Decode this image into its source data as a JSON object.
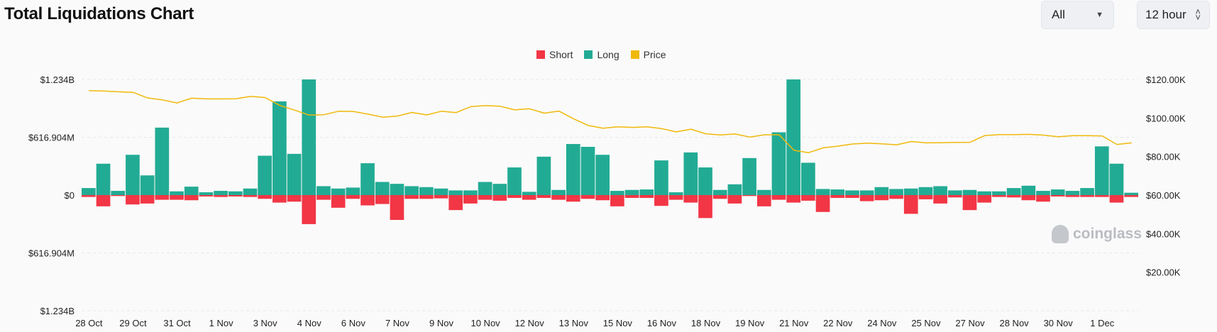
{
  "header": {
    "title": "Total Liquidations Chart",
    "range_value": "All",
    "interval_value": "12 hour"
  },
  "legend": [
    {
      "label": "Short",
      "color": "#f23645"
    },
    {
      "label": "Long",
      "color": "#22ab94"
    },
    {
      "label": "Price",
      "color": "#f0b90b"
    }
  ],
  "watermark": "coinglass",
  "chart_data": {
    "type": "bar",
    "left_axis": {
      "ticks": [
        {
          "value": 1234000000,
          "label": "$1.234B"
        },
        {
          "value": 616904000,
          "label": "$616.904M"
        },
        {
          "value": 0,
          "label": "$0"
        },
        {
          "value": -616904000,
          "label": "$616.904M"
        },
        {
          "value": -1234000000,
          "label": "$1.234B"
        }
      ],
      "ylim": [
        -1234000000,
        1234000000
      ]
    },
    "right_axis": {
      "ticks": [
        {
          "value": 120000,
          "label": "$120.00K"
        },
        {
          "value": 100000,
          "label": "$100.00K"
        },
        {
          "value": 80000,
          "label": "$80.00K"
        },
        {
          "value": 60000,
          "label": "$60.00K"
        },
        {
          "value": 40000,
          "label": "$40.00K"
        },
        {
          "value": 20000,
          "label": "$20.00K"
        }
      ],
      "ylim": [
        0,
        120000
      ]
    },
    "x_tick_labels": [
      {
        "label": "28 Oct",
        "index": 0
      },
      {
        "label": "29 Oct",
        "index": 3
      },
      {
        "label": "31 Oct",
        "index": 6
      },
      {
        "label": "1 Nov",
        "index": 9
      },
      {
        "label": "3 Nov",
        "index": 12
      },
      {
        "label": "4 Nov",
        "index": 15
      },
      {
        "label": "6 Nov",
        "index": 18
      },
      {
        "label": "7 Nov",
        "index": 21
      },
      {
        "label": "9 Nov",
        "index": 24
      },
      {
        "label": "10 Nov",
        "index": 27
      },
      {
        "label": "12 Nov",
        "index": 30
      },
      {
        "label": "13 Nov",
        "index": 33
      },
      {
        "label": "15 Nov",
        "index": 36
      },
      {
        "label": "16 Nov",
        "index": 39
      },
      {
        "label": "18 Nov",
        "index": 42
      },
      {
        "label": "19 Nov",
        "index": 45
      },
      {
        "label": "21 Nov",
        "index": 48
      },
      {
        "label": "22 Nov",
        "index": 51
      },
      {
        "label": "24 Nov",
        "index": 54
      },
      {
        "label": "25 Nov",
        "index": 57
      },
      {
        "label": "27 Nov",
        "index": 60
      },
      {
        "label": "28 Nov",
        "index": 63
      },
      {
        "label": "30 Nov",
        "index": 66
      },
      {
        "label": "1 Dec",
        "index": 69
      }
    ],
    "series": [
      {
        "name": "Long",
        "values": [
          75,
          335,
          45,
          430,
          210,
          720,
          40,
          90,
          30,
          45,
          40,
          70,
          420,
          1000,
          440,
          1234,
          95,
          70,
          80,
          340,
          140,
          120,
          95,
          85,
          70,
          50,
          50,
          140,
          120,
          295,
          35,
          410,
          55,
          545,
          515,
          430,
          45,
          55,
          60,
          370,
          30,
          455,
          295,
          55,
          115,
          395,
          55,
          670,
          1234,
          345,
          65,
          60,
          50,
          50,
          85,
          65,
          70,
          85,
          95,
          50,
          55,
          40,
          40,
          75,
          100,
          45,
          60,
          45,
          75,
          520,
          335,
          25
        ]
      },
      {
        "name": "Short",
        "values": [
          -20,
          -120,
          -10,
          -100,
          -90,
          -50,
          -50,
          -55,
          -15,
          -20,
          -15,
          -20,
          -40,
          -80,
          -70,
          -310,
          -50,
          -135,
          -40,
          -110,
          -95,
          -265,
          -40,
          -40,
          -35,
          -160,
          -90,
          -50,
          -60,
          -30,
          -50,
          -30,
          -50,
          -70,
          -40,
          -55,
          -120,
          -30,
          -30,
          -115,
          -50,
          -80,
          -245,
          -40,
          -90,
          -10,
          -120,
          -50,
          -80,
          -60,
          -180,
          -30,
          -30,
          -65,
          -55,
          -40,
          -200,
          -45,
          -90,
          -25,
          -160,
          -80,
          -20,
          -25,
          -55,
          -70,
          -15,
          -20,
          -20,
          -20,
          -80,
          -20
        ]
      },
      {
        "name": "Price",
        "values": [
          114200,
          114000,
          113600,
          113300,
          110400,
          109400,
          107800,
          110300,
          109900,
          109900,
          110000,
          111200,
          110600,
          106500,
          104100,
          101500,
          101700,
          103500,
          103400,
          102000,
          100400,
          101000,
          102900,
          101600,
          103500,
          102800,
          105900,
          106400,
          106100,
          104200,
          104800,
          102500,
          103600,
          99600,
          96100,
          94700,
          95400,
          95100,
          95400,
          94500,
          92800,
          94200,
          91800,
          91200,
          91700,
          90100,
          91300,
          91300,
          83300,
          82000,
          84500,
          85400,
          86500,
          87000,
          86600,
          86100,
          87800,
          87100,
          87200,
          87300,
          87400,
          90900,
          91400,
          91400,
          91500,
          91100,
          90300,
          90800,
          90800,
          90700,
          86300,
          87100
        ]
      }
    ]
  }
}
